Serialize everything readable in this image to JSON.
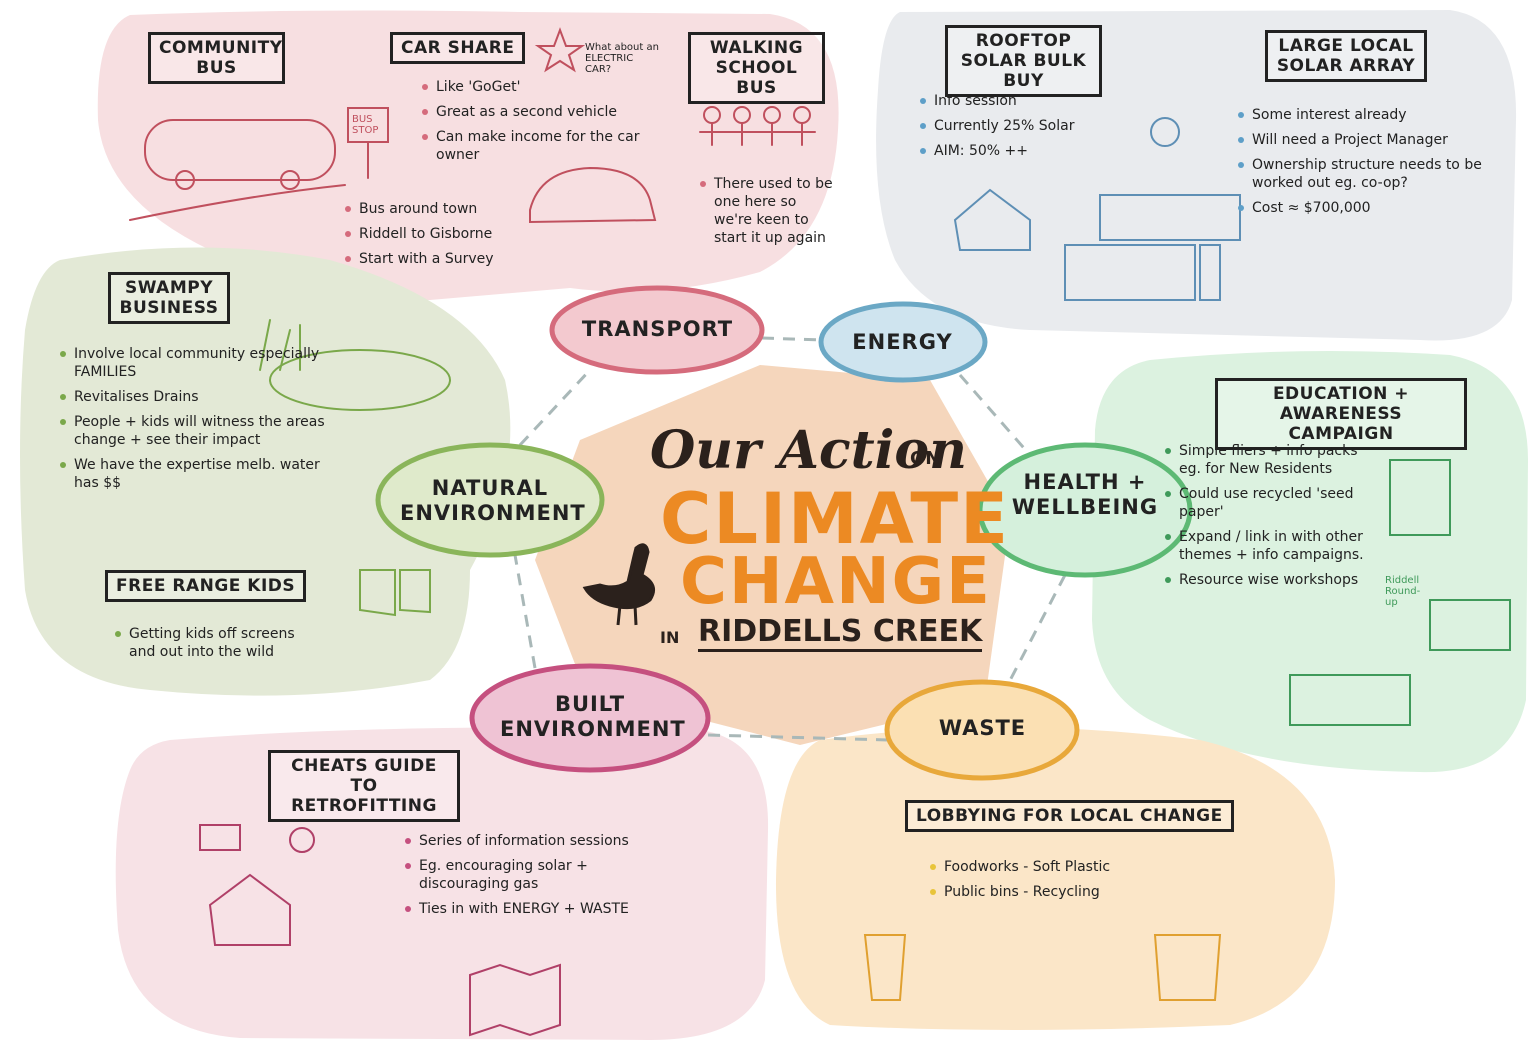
{
  "title": {
    "line1": "Our Action",
    "line2": "ON",
    "line3": "CLIMATE",
    "line4": "CHANGE",
    "line5": "IN",
    "line6": "RIDDELLS CREEK"
  },
  "themes": [
    {
      "label": "TRANSPORT",
      "ideas": [
        {
          "heading": "COMMUNITY BUS",
          "note": "BUS STOP",
          "points": [
            "Bus around town",
            "Riddell to Gisborne",
            "Start with a Survey"
          ]
        },
        {
          "heading": "CAR SHARE",
          "note": "What about an ELECTRIC CAR?",
          "points": [
            "Like 'GoGet'",
            "Great as a second vehicle",
            "Can make income for the car owner"
          ]
        },
        {
          "heading": "WALKING SCHOOL BUS",
          "points": [
            "There used to be one here so we're keen to start it up again"
          ]
        }
      ]
    },
    {
      "label": "ENERGY",
      "ideas": [
        {
          "heading": "ROOFTOP SOLAR BULK BUY",
          "points": [
            "Info session",
            "Currently 25% Solar",
            "AIM: 50% ++"
          ]
        },
        {
          "heading": "LARGE LOCAL SOLAR ARRAY",
          "points": [
            "Some interest already",
            "Will need a Project Manager",
            "Ownership structure needs to be worked out eg. co-op?",
            "Cost ≈ $700,000"
          ]
        }
      ]
    },
    {
      "label": "NATURAL ENVIRONMENT",
      "ideas": [
        {
          "heading": "SWAMPY BUSINESS",
          "points": [
            "Involve local community especially FAMILIES",
            "Revitalises Drains",
            "People + kids will witness the areas change + see their impact",
            "We have the expertise melb. water has $$"
          ]
        },
        {
          "heading": "FREE RANGE KIDS",
          "points": [
            "Getting kids off screens and out into the wild"
          ]
        }
      ]
    },
    {
      "label": "HEALTH + WELLBEING",
      "ideas": [
        {
          "heading": "EDUCATION + AWARENESS CAMPAIGN",
          "note": "Riddell Round-up",
          "points": [
            "Simple fliers + info packs eg. for New Residents",
            "Could use recycled 'seed paper'",
            "Expand / link in with other themes + info campaigns.",
            "Resource wise workshops"
          ]
        }
      ]
    },
    {
      "label": "BUILT ENVIRONMENT",
      "ideas": [
        {
          "heading": "CHEATS GUIDE TO RETROFITTING",
          "points": [
            "Series of information sessions",
            "Eg. encouraging solar + discouraging gas",
            "Ties in with ENERGY + WASTE"
          ]
        }
      ]
    },
    {
      "label": "WASTE",
      "ideas": [
        {
          "heading": "LOBBYING FOR LOCAL CHANGE",
          "points": [
            "Foodworks - Soft Plastic",
            "Public bins - Recycling"
          ]
        }
      ]
    }
  ]
}
